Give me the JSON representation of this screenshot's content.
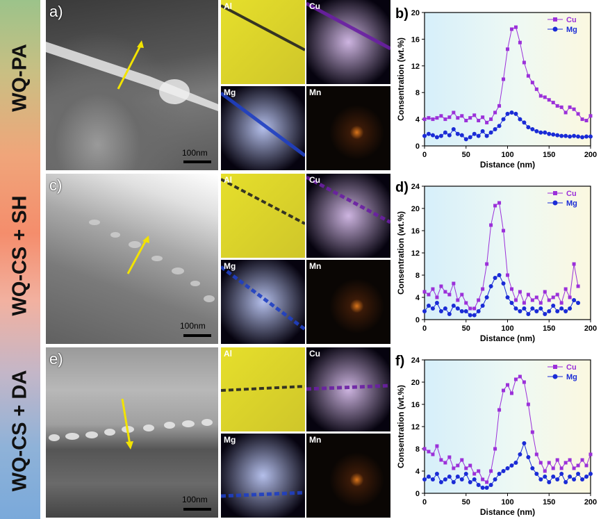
{
  "row_labels": [
    "WQ-PA",
    "WQ-CS + SH",
    "WQ-CS + DA"
  ],
  "tem_panels": [
    {
      "label": "a)",
      "scale": "100nm"
    },
    {
      "label": "c)",
      "scale": "100nm"
    },
    {
      "label": "e)",
      "scale": "100nm"
    }
  ],
  "map_elements": [
    "Al",
    "Cu",
    "Mg",
    "Mn"
  ],
  "map_colors": {
    "Al": "#e6df2b",
    "Cu": "#6a1fa3",
    "Mg": "#1f3fc2",
    "Mn": "#d9741a"
  },
  "series_colors": {
    "Cu": "#9b30d9",
    "Mg": "#1a2bd6"
  },
  "chart_data": [
    {
      "type": "line",
      "panel": "b)",
      "xlabel": "Distance (nm)",
      "ylabel": "Consentration (wt.%)",
      "xlim": [
        0,
        200
      ],
      "ylim": [
        0,
        20
      ],
      "xticks": [
        0,
        50,
        100,
        150,
        200
      ],
      "yticks": [
        0,
        4,
        8,
        12,
        16,
        20
      ],
      "legend": "top-right",
      "series": [
        {
          "name": "Cu",
          "x": [
            0,
            5,
            10,
            15,
            20,
            25,
            30,
            35,
            40,
            45,
            50,
            55,
            60,
            65,
            70,
            75,
            80,
            85,
            90,
            95,
            100,
            105,
            110,
            115,
            120,
            125,
            130,
            135,
            140,
            145,
            150,
            155,
            160,
            165,
            170,
            175,
            180,
            185,
            190,
            195,
            200
          ],
          "values": [
            4.0,
            4.2,
            4.0,
            4.2,
            4.5,
            4.0,
            4.3,
            5.0,
            4.2,
            4.5,
            3.8,
            4.2,
            4.6,
            3.8,
            4.3,
            3.5,
            4.0,
            5.0,
            6.0,
            10.0,
            14.5,
            17.5,
            17.8,
            15.5,
            12.5,
            10.5,
            9.5,
            8.5,
            7.5,
            7.3,
            6.9,
            6.5,
            6.0,
            5.8,
            5.0,
            5.8,
            5.5,
            4.8,
            4.0,
            3.8,
            4.5
          ]
        },
        {
          "name": "Mg",
          "x": [
            0,
            5,
            10,
            15,
            20,
            25,
            30,
            35,
            40,
            45,
            50,
            55,
            60,
            65,
            70,
            75,
            80,
            85,
            90,
            95,
            100,
            105,
            110,
            115,
            120,
            125,
            130,
            135,
            140,
            145,
            150,
            155,
            160,
            165,
            170,
            175,
            180,
            185,
            190,
            195,
            200
          ],
          "values": [
            1.5,
            1.8,
            1.6,
            1.3,
            1.5,
            2.0,
            1.6,
            2.5,
            1.8,
            1.6,
            1.0,
            1.3,
            1.8,
            1.5,
            2.2,
            1.5,
            2.0,
            2.5,
            3.0,
            4.0,
            4.8,
            5.0,
            4.8,
            4.0,
            3.5,
            2.8,
            2.5,
            2.2,
            2.0,
            2.0,
            1.8,
            1.7,
            1.6,
            1.5,
            1.5,
            1.4,
            1.5,
            1.4,
            1.3,
            1.4,
            1.4
          ]
        }
      ]
    },
    {
      "type": "line",
      "panel": "d)",
      "xlabel": "Distance (nm)",
      "ylabel": "Consentration (wt.%)",
      "xlim": [
        0,
        200
      ],
      "ylim": [
        0,
        24
      ],
      "xticks": [
        0,
        50,
        100,
        150,
        200
      ],
      "yticks": [
        0,
        4,
        8,
        12,
        16,
        20,
        24
      ],
      "legend": "top-right",
      "series": [
        {
          "name": "Cu",
          "x": [
            0,
            5,
            10,
            15,
            20,
            25,
            30,
            35,
            40,
            45,
            50,
            55,
            60,
            65,
            70,
            75,
            80,
            85,
            90,
            95,
            100,
            105,
            110,
            115,
            120,
            125,
            130,
            135,
            140,
            145,
            150,
            155,
            160,
            165,
            170,
            175,
            180,
            185
          ],
          "values": [
            5.0,
            4.5,
            5.5,
            4.0,
            6.0,
            5.0,
            4.5,
            6.5,
            3.5,
            4.5,
            3.0,
            2.0,
            2.0,
            3.5,
            5.5,
            10.0,
            17.0,
            20.5,
            21.0,
            16.0,
            8.0,
            5.5,
            3.5,
            5.0,
            3.0,
            4.5,
            3.5,
            4.0,
            3.0,
            5.0,
            3.5,
            4.0,
            4.5,
            3.0,
            5.5,
            4.0,
            10.0,
            6.0
          ]
        },
        {
          "name": "Mg",
          "x": [
            0,
            5,
            10,
            15,
            20,
            25,
            30,
            35,
            40,
            45,
            50,
            55,
            60,
            65,
            70,
            75,
            80,
            85,
            90,
            95,
            100,
            105,
            110,
            115,
            120,
            125,
            130,
            135,
            140,
            145,
            150,
            155,
            160,
            165,
            170,
            175,
            180,
            185
          ],
          "values": [
            1.5,
            2.5,
            2.0,
            3.0,
            1.5,
            2.0,
            1.0,
            2.5,
            2.0,
            1.5,
            1.5,
            0.8,
            0.8,
            1.5,
            2.5,
            4.0,
            6.0,
            7.5,
            8.0,
            6.5,
            4.0,
            3.0,
            2.0,
            1.5,
            2.0,
            1.0,
            2.0,
            1.5,
            2.0,
            1.0,
            1.5,
            2.5,
            1.5,
            2.0,
            1.5,
            2.0,
            3.5,
            3.0
          ]
        }
      ]
    },
    {
      "type": "line",
      "panel": "f)",
      "xlabel": "Distance (nm)",
      "ylabel": "Consentration (wt.%)",
      "xlim": [
        0,
        200
      ],
      "ylim": [
        0,
        24
      ],
      "xticks": [
        0,
        50,
        100,
        150,
        200
      ],
      "yticks": [
        0,
        4,
        8,
        12,
        16,
        20,
        24
      ],
      "legend": "top-right",
      "series": [
        {
          "name": "Cu",
          "x": [
            0,
            5,
            10,
            15,
            20,
            25,
            30,
            35,
            40,
            45,
            50,
            55,
            60,
            65,
            70,
            75,
            80,
            85,
            90,
            95,
            100,
            105,
            110,
            115,
            120,
            125,
            130,
            135,
            140,
            145,
            150,
            155,
            160,
            165,
            170,
            175,
            180,
            185,
            190,
            195,
            200
          ],
          "values": [
            8.0,
            7.5,
            7.0,
            8.5,
            6.0,
            5.5,
            6.5,
            4.5,
            5.0,
            6.0,
            4.5,
            5.0,
            3.5,
            4.0,
            2.5,
            2.0,
            4.0,
            8.0,
            15.0,
            18.5,
            19.5,
            18.0,
            20.5,
            21.0,
            20.0,
            16.0,
            11.0,
            7.0,
            5.5,
            4.0,
            5.5,
            4.5,
            6.0,
            4.5,
            5.5,
            6.0,
            4.5,
            5.0,
            6.0,
            5.0,
            7.0
          ]
        },
        {
          "name": "Mg",
          "x": [
            0,
            5,
            10,
            15,
            20,
            25,
            30,
            35,
            40,
            45,
            50,
            55,
            60,
            65,
            70,
            75,
            80,
            85,
            90,
            95,
            100,
            105,
            110,
            115,
            120,
            125,
            130,
            135,
            140,
            145,
            150,
            155,
            160,
            165,
            170,
            175,
            180,
            185,
            190,
            195,
            200
          ],
          "values": [
            2.5,
            3.0,
            2.5,
            3.5,
            2.0,
            2.5,
            3.0,
            2.0,
            3.0,
            2.5,
            3.5,
            2.0,
            2.5,
            1.5,
            1.0,
            1.0,
            1.5,
            2.5,
            3.5,
            4.0,
            4.5,
            5.0,
            5.5,
            7.0,
            9.0,
            6.5,
            4.5,
            3.5,
            2.5,
            3.0,
            2.0,
            3.0,
            2.5,
            3.5,
            2.0,
            3.0,
            2.5,
            3.5,
            2.5,
            3.0,
            3.5
          ]
        }
      ]
    }
  ]
}
